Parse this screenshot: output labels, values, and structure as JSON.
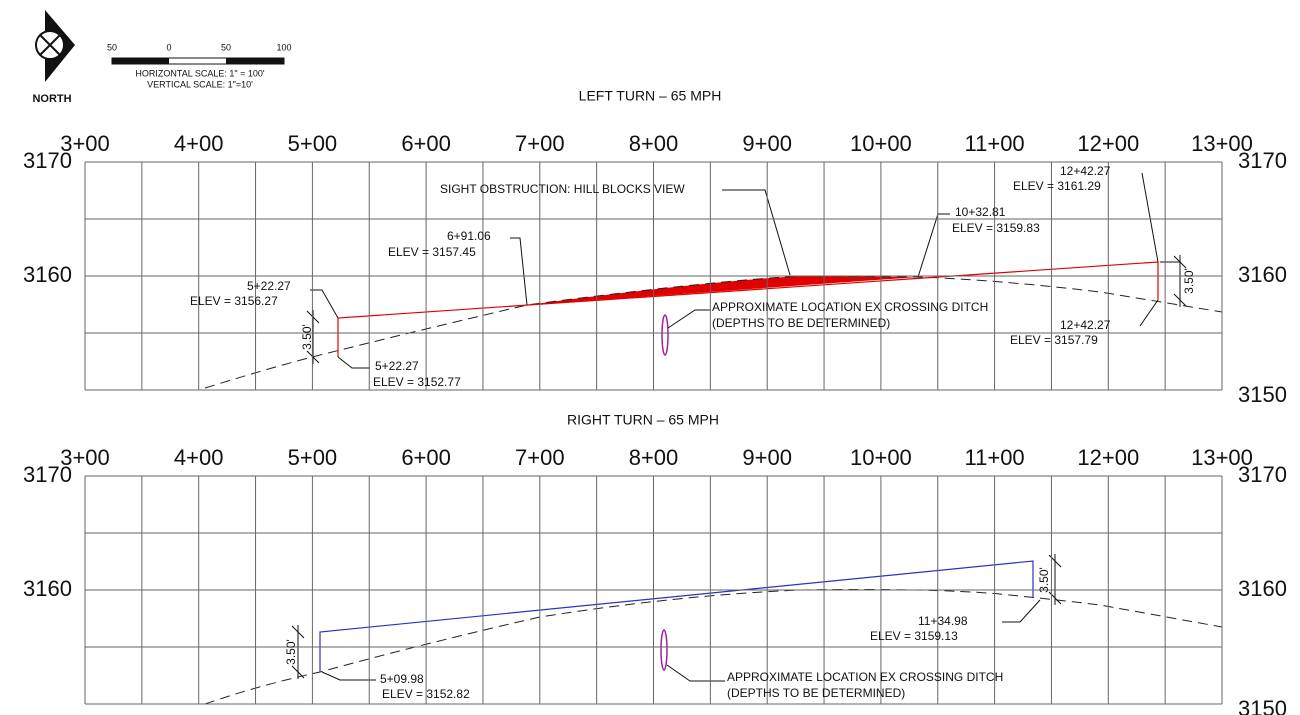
{
  "header": {
    "north": "NORTH",
    "scale_ticks": [
      "50",
      "0",
      "50",
      "100"
    ],
    "horizontal_scale": "HORIZONTAL SCALE:  1\" = 100'",
    "vertical_scale": "VERTICAL SCALE:  1\"=10'"
  },
  "profiles": [
    {
      "title": "LEFT TURN  –  65 MPH",
      "stations": [
        "3+00",
        "4+00",
        "5+00",
        "6+00",
        "7+00",
        "8+00",
        "9+00",
        "10+00",
        "11+00",
        "12+00",
        "13+00"
      ],
      "left_elevations": [
        "3170",
        "3160"
      ],
      "right_elevations": [
        "3170",
        "3160",
        "3150"
      ],
      "notes": [
        "SIGHT OBSTRUCTION:  HILL BLOCKS VIEW",
        "6+91.06",
        "ELEV = 3157.45",
        "10+32.81",
        "ELEV = 3159.83",
        "5+22.27",
        "ELEV = 3156.27",
        "5+22.27",
        "ELEV = 3152.77",
        "12+42.27",
        "ELEV = 3161.29",
        "12+42.27",
        "ELEV = 3157.79",
        "APPROXIMATE LOCATION EX CROSSING DITCH",
        "(DEPTHS TO BE DETERMINED)",
        "3.50'",
        "3.50'"
      ]
    },
    {
      "title": "RIGHT TURN  –  65 MPH",
      "stations": [
        "3+00",
        "4+00",
        "5+00",
        "6+00",
        "7+00",
        "8+00",
        "9+00",
        "10+00",
        "11+00",
        "12+00",
        "13+00"
      ],
      "left_elevations": [
        "3170",
        "3160"
      ],
      "right_elevations": [
        "3170",
        "3160",
        "3150"
      ],
      "notes": [
        "5+09.98",
        "ELEV = 3152.82",
        "11+34.98",
        "ELEV = 3159.13",
        "APPROXIMATE LOCATION EX CROSSING DITCH",
        "(DEPTHS TO BE DETERMINED)",
        "3.50'",
        "3.50'"
      ]
    }
  ]
}
